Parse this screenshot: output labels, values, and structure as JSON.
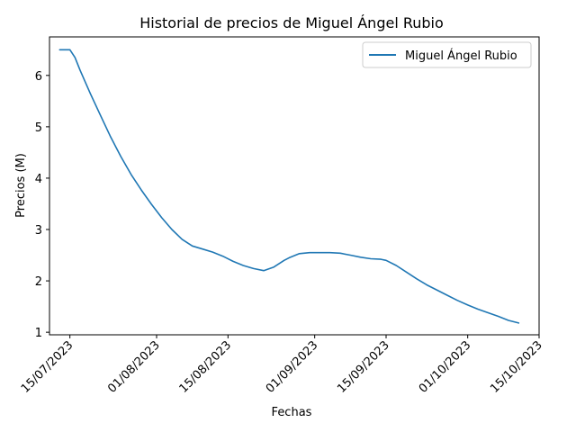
{
  "chart_data": {
    "type": "line",
    "title": "Historial de precios de Miguel Ángel Rubio",
    "xlabel": "Fechas",
    "ylabel": "Precios (M)",
    "ylim": [
      0.95,
      6.75
    ],
    "xlim": [
      "2023-07-11",
      "2023-10-15"
    ],
    "yticks": [
      1,
      2,
      3,
      4,
      5,
      6
    ],
    "xticks": [
      {
        "date": "2023-07-15",
        "label": "15/07/2023"
      },
      {
        "date": "2023-08-01",
        "label": "01/08/2023"
      },
      {
        "date": "2023-08-15",
        "label": "15/08/2023"
      },
      {
        "date": "2023-09-01",
        "label": "01/09/2023"
      },
      {
        "date": "2023-09-15",
        "label": "15/09/2023"
      },
      {
        "date": "2023-10-01",
        "label": "01/10/2023"
      },
      {
        "date": "2023-10-15",
        "label": "15/10/2023"
      }
    ],
    "grid": false,
    "legend_position": "top-right",
    "color": "#1f77b4",
    "series": [
      {
        "name": "Miguel Ángel Rubio",
        "x": [
          "2023-07-13",
          "2023-07-14",
          "2023-07-15",
          "2023-07-16",
          "2023-07-17",
          "2023-07-19",
          "2023-07-21",
          "2023-07-23",
          "2023-07-25",
          "2023-07-27",
          "2023-07-29",
          "2023-07-31",
          "2023-08-02",
          "2023-08-04",
          "2023-08-06",
          "2023-08-08",
          "2023-08-10",
          "2023-08-12",
          "2023-08-14",
          "2023-08-16",
          "2023-08-18",
          "2023-08-20",
          "2023-08-22",
          "2023-08-24",
          "2023-08-26",
          "2023-08-27",
          "2023-08-29",
          "2023-08-31",
          "2023-09-01",
          "2023-09-02",
          "2023-09-04",
          "2023-09-06",
          "2023-09-08",
          "2023-09-10",
          "2023-09-12",
          "2023-09-14",
          "2023-09-15",
          "2023-09-17",
          "2023-09-19",
          "2023-09-21",
          "2023-09-23",
          "2023-09-25",
          "2023-09-27",
          "2023-09-29",
          "2023-10-01",
          "2023-10-03",
          "2023-10-05",
          "2023-10-07",
          "2023-10-09",
          "2023-10-11"
        ],
        "y": [
          6.5,
          6.5,
          6.5,
          6.35,
          6.1,
          5.65,
          5.22,
          4.8,
          4.42,
          4.07,
          3.77,
          3.49,
          3.23,
          3.0,
          2.81,
          2.68,
          2.62,
          2.56,
          2.48,
          2.38,
          2.3,
          2.24,
          2.2,
          2.27,
          2.4,
          2.45,
          2.53,
          2.55,
          2.55,
          2.55,
          2.55,
          2.54,
          2.5,
          2.46,
          2.43,
          2.42,
          2.4,
          2.3,
          2.17,
          2.04,
          1.92,
          1.82,
          1.72,
          1.62,
          1.53,
          1.45,
          1.38,
          1.31,
          1.23,
          1.18
        ]
      }
    ]
  }
}
